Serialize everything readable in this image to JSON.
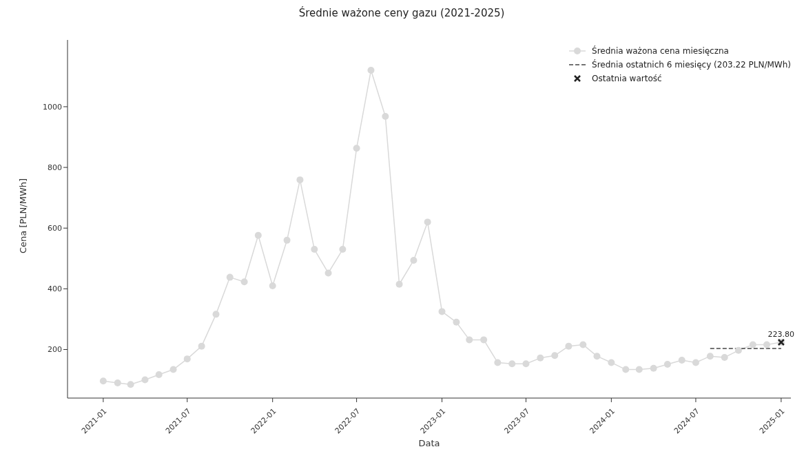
{
  "chart_data": {
    "type": "line",
    "title": "Średnie ważone ceny gazu (2021-2025)",
    "xlabel": "Data",
    "ylabel": "Cena [PLN/MWh]",
    "x": [
      "2021-01",
      "2021-02",
      "2021-03",
      "2021-04",
      "2021-05",
      "2021-06",
      "2021-07",
      "2021-08",
      "2021-09",
      "2021-10",
      "2021-11",
      "2021-12",
      "2022-01",
      "2022-02",
      "2022-03",
      "2022-04",
      "2022-05",
      "2022-06",
      "2022-07",
      "2022-08",
      "2022-09",
      "2022-10",
      "2022-11",
      "2022-12",
      "2023-01",
      "2023-02",
      "2023-03",
      "2023-04",
      "2023-05",
      "2023-06",
      "2023-07",
      "2023-08",
      "2023-09",
      "2023-10",
      "2023-11",
      "2023-12",
      "2024-01",
      "2024-02",
      "2024-03",
      "2024-04",
      "2024-05",
      "2024-06",
      "2024-07",
      "2024-08",
      "2024-09",
      "2024-10",
      "2024-11",
      "2024-12",
      "2025-01"
    ],
    "series": [
      {
        "name": "Średnia ważona cena miesięczna",
        "color": "#d9d9d9",
        "marker": "circle",
        "line_style": "solid",
        "values": [
          96,
          90,
          85,
          100,
          117,
          134,
          169,
          211,
          316,
          438,
          423,
          576,
          410,
          560,
          759,
          530,
          452,
          530,
          863,
          1120,
          968,
          415,
          494,
          620,
          325,
          290,
          232,
          232,
          157,
          153,
          153,
          172,
          180,
          211,
          216,
          178,
          157,
          134,
          134,
          138,
          151,
          165,
          157,
          178,
          174,
          197,
          216,
          216,
          223.8
        ]
      },
      {
        "name": "Średnia ostatnich 6 miesięcy (203.22 PLN/MWh)",
        "color": "#444444",
        "marker": "none",
        "line_style": "dashed",
        "x": [
          "2024-08",
          "2025-01"
        ],
        "values": [
          203.22,
          203.22
        ]
      },
      {
        "name": "Ostatnia wartość",
        "type": "scatter",
        "color": "#222222",
        "marker": "cross",
        "x": [
          "2025-01"
        ],
        "values": [
          223.8
        ]
      }
    ],
    "annotations": [
      {
        "text": "223.80",
        "x": "2025-01",
        "y": 223.8
      }
    ],
    "xlim": [
      "2020-10-16",
      "2025-01-22"
    ],
    "xticks": [
      "2021-01",
      "2021-07",
      "2022-01",
      "2022-07",
      "2023-01",
      "2023-07",
      "2024-01",
      "2024-07",
      "2025-01"
    ],
    "ylim": [
      40,
      1220
    ],
    "yticks": [
      200,
      400,
      600,
      800,
      1000
    ],
    "grid": false,
    "legend": "top right"
  }
}
